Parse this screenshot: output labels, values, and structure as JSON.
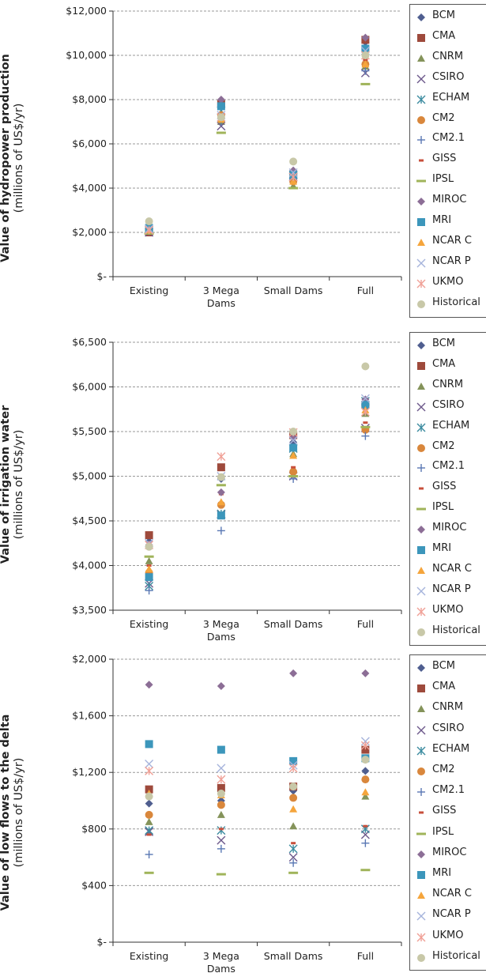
{
  "series_styles": [
    {
      "name": "BCM",
      "marker": "diamond",
      "color": "#4f5e8f"
    },
    {
      "name": "CMA",
      "marker": "square",
      "color": "#9e4a3c"
    },
    {
      "name": "CNRM",
      "marker": "triangle",
      "color": "#84935a"
    },
    {
      "name": "CSIRO",
      "marker": "x",
      "color": "#6e5a8c"
    },
    {
      "name": "ECHAM",
      "marker": "asterisk",
      "color": "#3c8ca0"
    },
    {
      "name": "CM2",
      "marker": "circle",
      "color": "#d9873c"
    },
    {
      "name": "CM2.1",
      "marker": "plus",
      "color": "#5a78b4"
    },
    {
      "name": "GISS",
      "marker": "shortdash",
      "color": "#c8503c"
    },
    {
      "name": "IPSL",
      "marker": "longdash",
      "color": "#a0b45a"
    },
    {
      "name": "MIROC",
      "marker": "diamond",
      "color": "#8c6e96"
    },
    {
      "name": "MRI",
      "marker": "square",
      "color": "#3c96bb"
    },
    {
      "name": "NCAR C",
      "marker": "triangle",
      "color": "#f5a53c"
    },
    {
      "name": "NCAR P",
      "marker": "x",
      "color": "#a6b4dc"
    },
    {
      "name": "UKMO",
      "marker": "asterisk",
      "color": "#f0a096"
    },
    {
      "name": "Historical",
      "marker": "circle",
      "color": "#c8c8a8"
    }
  ],
  "chart_data": [
    {
      "type": "scatter",
      "ylabel_bold": "Value of hydropower production",
      "ylabel_normal": "(millions of US$/yr)",
      "categories": [
        "Existing",
        "3 Mega\nDams",
        "Small Dams",
        "Full"
      ],
      "ylim": [
        0,
        12000
      ],
      "yticks": [
        0,
        2000,
        4000,
        6000,
        8000,
        10000,
        12000
      ],
      "yticklabels": [
        "$-",
        "$2,000",
        "$4,000",
        "$6,000",
        "$8,000",
        "$10,000",
        "$12,000"
      ],
      "grid": true,
      "legend": "right",
      "series": [
        {
          "name": "BCM",
          "values": [
            2100,
            7900,
            4700,
            10600
          ]
        },
        {
          "name": "CMA",
          "values": [
            2000,
            7800,
            4600,
            10700
          ]
        },
        {
          "name": "CNRM",
          "values": [
            2050,
            7000,
            4100,
            9500
          ]
        },
        {
          "name": "CSIRO",
          "values": [
            2000,
            6800,
            4500,
            9200
          ]
        },
        {
          "name": "ECHAM",
          "values": [
            2100,
            7500,
            4600,
            10200
          ]
        },
        {
          "name": "CM2",
          "values": [
            2200,
            7300,
            4300,
            9600
          ]
        },
        {
          "name": "CM2.1",
          "values": [
            2050,
            7000,
            4400,
            9300
          ]
        },
        {
          "name": "GISS",
          "values": [
            2000,
            7200,
            4500,
            9800
          ]
        },
        {
          "name": "IPSL",
          "values": [
            1950,
            6500,
            4000,
            8700
          ]
        },
        {
          "name": "MIROC",
          "values": [
            2150,
            8000,
            4800,
            10800
          ]
        },
        {
          "name": "MRI",
          "values": [
            2200,
            7700,
            4600,
            10300
          ]
        },
        {
          "name": "NCAR C",
          "values": [
            2100,
            7100,
            4300,
            9600
          ]
        },
        {
          "name": "NCAR P",
          "values": [
            2150,
            7300,
            4700,
            10200
          ]
        },
        {
          "name": "UKMO",
          "values": [
            2100,
            7200,
            4500,
            10000
          ]
        },
        {
          "name": "Historical",
          "values": [
            2500,
            7200,
            5200,
            10000
          ]
        }
      ]
    },
    {
      "type": "scatter",
      "ylabel_bold": "Value of irrigation water",
      "ylabel_normal": "(millions of US$/yr)",
      "categories": [
        "Existing",
        "3 Mega\nDams",
        "Small Dams",
        "Full"
      ],
      "ylim": [
        3500,
        6500
      ],
      "yticks": [
        3500,
        4000,
        4500,
        5000,
        5500,
        6000,
        6500
      ],
      "yticklabels": [
        "$3,500",
        "$4,000",
        "$4,500",
        "$5,000",
        "$5,500",
        "$6,000",
        "$6,500"
      ],
      "grid": true,
      "legend": "right",
      "series": [
        {
          "name": "BCM",
          "values": [
            4270,
            4970,
            5380,
            5760
          ]
        },
        {
          "name": "CMA",
          "values": [
            4340,
            5100,
            5460,
            5800
          ]
        },
        {
          "name": "CNRM",
          "values": [
            4050,
            4700,
            5250,
            5700
          ]
        },
        {
          "name": "CSIRO",
          "values": [
            3800,
            4570,
            5000,
            5540
          ]
        },
        {
          "name": "ECHAM",
          "values": [
            3770,
            4580,
            5310,
            5840
          ]
        },
        {
          "name": "CM2",
          "values": [
            3920,
            4680,
            5050,
            5520
          ]
        },
        {
          "name": "CM2.1",
          "values": [
            3720,
            4390,
            4970,
            5450
          ]
        },
        {
          "name": "GISS",
          "values": [
            4000,
            4800,
            5100,
            5600
          ]
        },
        {
          "name": "IPSL",
          "values": [
            4100,
            4900,
            5000,
            5550
          ]
        },
        {
          "name": "MIROC",
          "values": [
            4230,
            4820,
            5430,
            5860
          ]
        },
        {
          "name": "MRI",
          "values": [
            3870,
            4560,
            5320,
            5800
          ]
        },
        {
          "name": "NCAR C",
          "values": [
            3960,
            4710,
            5230,
            5740
          ]
        },
        {
          "name": "NCAR P",
          "values": [
            4250,
            5000,
            5400,
            5870
          ]
        },
        {
          "name": "UKMO",
          "values": [
            4230,
            5220,
            5490,
            5720
          ]
        },
        {
          "name": "Historical",
          "values": [
            4210,
            4990,
            5500,
            6230
          ]
        }
      ]
    },
    {
      "type": "scatter",
      "ylabel_bold": "Value of low flows to the delta",
      "ylabel_normal": "(millions of US$/yr)",
      "categories": [
        "Existing",
        "3 Mega\nDams",
        "Small Dams",
        "Full"
      ],
      "ylim": [
        0,
        2000
      ],
      "yticks": [
        0,
        400,
        800,
        1200,
        1600,
        2000
      ],
      "yticklabels": [
        "$-",
        "$400",
        "$800",
        "$1,200",
        "$1,600",
        "$2,000"
      ],
      "grid": true,
      "legend": "right",
      "series": [
        {
          "name": "BCM",
          "values": [
            980,
            1000,
            1070,
            1210
          ]
        },
        {
          "name": "CMA",
          "values": [
            1080,
            1090,
            1100,
            1360
          ]
        },
        {
          "name": "CNRM",
          "values": [
            850,
            900,
            820,
            1030
          ]
        },
        {
          "name": "CSIRO",
          "values": [
            780,
            720,
            600,
            760
          ]
        },
        {
          "name": "ECHAM",
          "values": [
            790,
            790,
            660,
            800
          ]
        },
        {
          "name": "CM2",
          "values": [
            900,
            970,
            1020,
            1150
          ]
        },
        {
          "name": "CM2.1",
          "values": [
            620,
            660,
            560,
            700
          ]
        },
        {
          "name": "GISS",
          "values": [
            760,
            800,
            700,
            820
          ]
        },
        {
          "name": "IPSL",
          "values": [
            490,
            480,
            490,
            510
          ]
        },
        {
          "name": "MIROC",
          "values": [
            1820,
            1810,
            1900,
            1900
          ]
        },
        {
          "name": "MRI",
          "values": [
            1400,
            1360,
            1280,
            1300
          ]
        },
        {
          "name": "NCAR C",
          "values": [
            1050,
            1040,
            940,
            1060
          ]
        },
        {
          "name": "NCAR P",
          "values": [
            1260,
            1230,
            1250,
            1420
          ]
        },
        {
          "name": "UKMO",
          "values": [
            1210,
            1150,
            1230,
            1390
          ]
        },
        {
          "name": "Historical",
          "values": [
            1030,
            1050,
            1100,
            1290
          ]
        }
      ]
    }
  ]
}
